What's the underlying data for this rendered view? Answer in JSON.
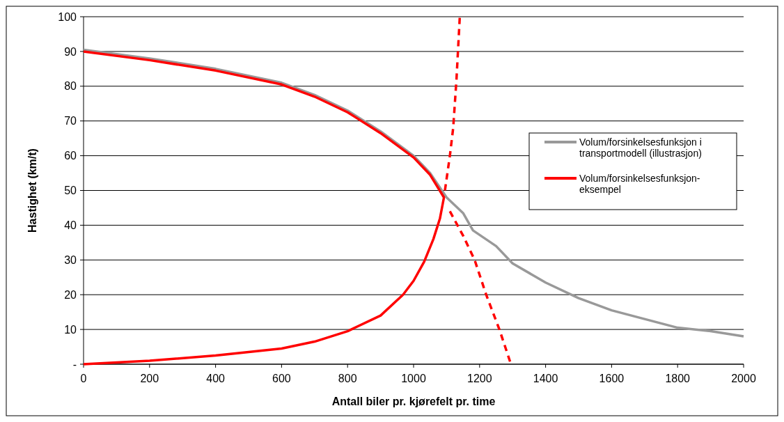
{
  "chart_data": {
    "type": "line",
    "xlabel": "Antall biler pr. kjørefelt pr. time",
    "ylabel": "Hastighet (km/t)",
    "xlim": [
      0,
      2000
    ],
    "xticks": [
      0,
      200,
      400,
      600,
      800,
      1000,
      1200,
      1400,
      1600,
      1800,
      2000
    ],
    "ylim": [
      0,
      100
    ],
    "yticks": [
      {
        "value": 0,
        "label": "-"
      },
      10,
      20,
      30,
      40,
      50,
      60,
      70,
      80,
      90,
      100
    ],
    "grid": "y",
    "legend": "right",
    "line_style": "solid",
    "series": [
      {
        "name": "Volum/forsinkelsesfunksjon i transportmodell (illustrasjon)",
        "color": "#999999",
        "x": [
          0,
          200,
          400,
          600,
          700,
          800,
          900,
          1000,
          1050,
          1100,
          1150,
          1180,
          1250,
          1300,
          1400,
          1500,
          1600,
          1700,
          1800,
          1900,
          2000
        ],
        "values": [
          90.5,
          88,
          85,
          81,
          77.5,
          73,
          67,
          60,
          55,
          48,
          43.5,
          38.5,
          34,
          29,
          23.5,
          19,
          15.5,
          13,
          10.5,
          9.5,
          8
        ]
      },
      {
        "name": "Volum/forsinkelsesfunksjon-eksempel",
        "color": "#ff0000",
        "x": [
          0,
          200,
          400,
          600,
          700,
          800,
          900,
          1000,
          1050,
          1092,
          1080,
          1060,
          1032,
          1000,
          968,
          900,
          800,
          700,
          600,
          400,
          200,
          0
        ],
        "values": [
          90,
          87.5,
          84.5,
          80.5,
          77,
          72.5,
          66.5,
          59.5,
          54.5,
          48,
          42,
          36,
          29.5,
          24,
          20,
          14,
          9.5,
          6.5,
          4.5,
          2.5,
          1,
          0
        ]
      },
      {
        "color": "#ff0000",
        "line_style": "dashed",
        "x": [
          1095,
          1110,
          1120,
          1130,
          1140
        ],
        "values": [
          50,
          60,
          68,
          82,
          100
        ]
      },
      {
        "color": "#ff0000",
        "line_style": "dashed",
        "x": [
          1110,
          1150,
          1185,
          1220,
          1260,
          1295
        ],
        "values": [
          44,
          37,
          30,
          20,
          10,
          0
        ]
      }
    ]
  }
}
